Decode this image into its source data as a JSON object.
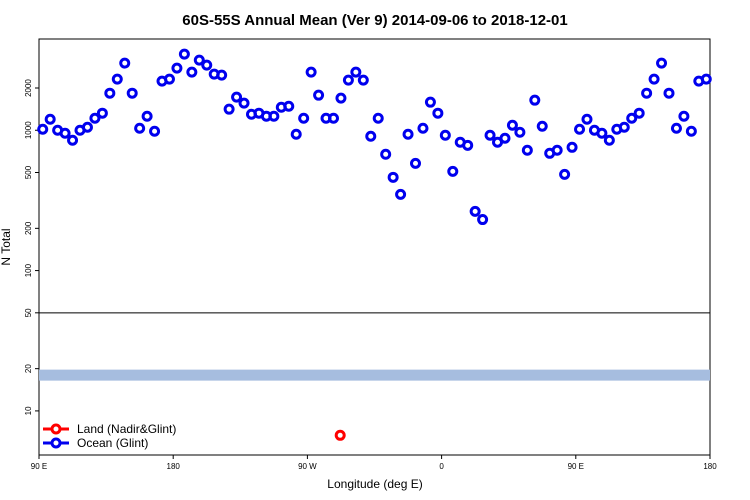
{
  "chart_data": {
    "type": "scatter",
    "title": "60S-55S Annual Mean (Ver 9)   2014-09-06 to 2018-12-01",
    "x_label": "Longitude (deg E)",
    "y_label": "N Total",
    "log_y": true,
    "xlim": [
      90,
      540
    ],
    "ylim": [
      4.85,
      4470
    ],
    "xticks": [
      {
        "value": 90,
        "label": "90 E"
      },
      180,
      {
        "value": 270,
        "label": "90 W"
      },
      {
        "value": 360,
        "label": "0"
      },
      {
        "value": 450,
        "label": "90 E"
      },
      {
        "value": 540,
        "label": "180"
      }
    ],
    "yticks": [
      10,
      20,
      50,
      100,
      200,
      500,
      1000,
      2000
    ],
    "hlines": [
      {
        "value": 50,
        "color": "#000000"
      },
      {
        "value": 18,
        "color": "#a6bddf"
      }
    ],
    "legend": "bottom-left",
    "series": [
      {
        "name": "Land (Nadir&Glint)",
        "color": "#ff0000",
        "x": [
          292
        ],
        "values": [
          6.7
        ]
      },
      {
        "name": "Ocean (Glint)",
        "color": "#0000ee",
        "x": [
          92.5,
          97.5,
          102.5,
          107.5,
          112.5,
          117.5,
          122.5,
          127.5,
          132.5,
          137.5,
          142.5,
          147.5,
          152.5,
          157.5,
          162.5,
          167.5,
          172.5,
          177.5,
          182.5,
          187.5,
          192.5,
          197.5,
          202.5,
          207.5,
          212.5,
          217.5,
          222.5,
          227.5,
          232.5,
          237.5,
          242.5,
          247.5,
          252.5,
          257.5,
          262.5,
          267.5,
          272.5,
          277.5,
          282.5,
          287.5,
          292.5,
          297.5,
          302.5,
          307.5,
          312.5,
          317.5,
          322.5,
          327.5,
          332.5,
          337.5,
          342.5,
          347.5,
          352.5,
          357.5,
          362.5,
          367.5,
          372.5,
          377.5,
          382.5,
          387.5,
          392.5,
          397.5,
          402.5,
          407.5,
          412.5,
          417.5,
          422.5,
          427.5,
          432.5,
          437.5,
          442.5,
          447.5,
          452.5,
          457.5,
          462.5,
          467.5,
          472.5,
          477.5,
          482.5,
          487.5,
          492.5,
          497.5,
          502.5,
          507.5,
          512.5,
          517.5,
          522.5,
          527.5,
          532.5,
          537.5
        ],
        "values": [
          1016,
          1198,
          1000,
          952,
          849,
          1000,
          1050,
          1218,
          1323,
          1837,
          2313,
          3010,
          1837,
          1033,
          1259,
          984,
          2239,
          2313,
          2773,
          3490,
          2596,
          3162,
          2911,
          2512,
          2471,
          1413,
          1721,
          1560,
          1301,
          1323,
          1259,
          1259,
          1459,
          1483,
          936,
          1218,
          2596,
          1778,
          1218,
          1218,
          1693,
          2276,
          2596,
          2276,
          906,
          1218,
          674,
          462,
          349,
          936,
          581,
          1033,
          1585,
          1323,
          921,
          509,
          821,
          781,
          264,
          231,
          921,
          821,
          877,
          1086,
          968,
          720,
          1638,
          1068,
          685,
          720,
          485,
          756,
          1016,
          1198,
          1000,
          952,
          849,
          1016,
          1050,
          1218,
          1323,
          1837,
          2313,
          3010,
          1837,
          1033,
          1259,
          984,
          2239,
          2313
        ]
      }
    ]
  }
}
